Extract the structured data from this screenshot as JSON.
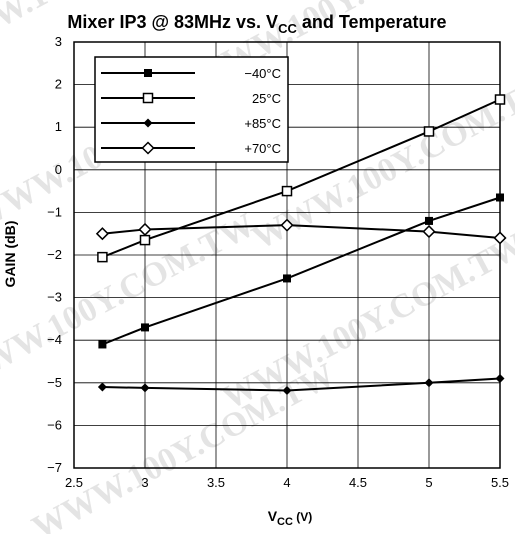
{
  "chart_data": {
    "type": "line",
    "title_main": "Mixer IP3 @ 83MHz vs. V",
    "title_sub": "CC",
    "title_tail": " and Temperature",
    "xlabel_main": "V",
    "xlabel_sub": "CC",
    "xlabel_tail": " (V)",
    "ylabel": "GAIN (dB)",
    "xlim": [
      2.5,
      5.5
    ],
    "ylim": [
      -7,
      3
    ],
    "x_ticks": [
      2.5,
      3,
      3.5,
      4,
      4.5,
      5,
      5.5
    ],
    "x_tick_labels": [
      "2.5",
      "3",
      "3.5",
      "4",
      "4.5",
      "5",
      "5.5"
    ],
    "y_ticks": [
      3,
      2,
      1,
      0,
      -1,
      -2,
      -3,
      -4,
      -5,
      -6,
      -7
    ],
    "y_tick_labels": [
      "3",
      "2",
      "1",
      "0",
      "−1",
      "−2",
      "−3",
      "−4",
      "−5",
      "−6",
      "−7"
    ],
    "grid": true,
    "legend_position": "top-left",
    "watermark": "WWW.100Y.COM.TW",
    "series": [
      {
        "name": "−40°C",
        "marker": "filled-square",
        "x": [
          2.7,
          3,
          4,
          5,
          5.5
        ],
        "y": [
          -4.1,
          -3.7,
          -2.55,
          -1.2,
          -0.65
        ]
      },
      {
        "name": "25°C",
        "marker": "open-square",
        "x": [
          2.7,
          3,
          4,
          5,
          5.5
        ],
        "y": [
          -2.05,
          -1.65,
          -0.5,
          0.9,
          1.65
        ]
      },
      {
        "name": "+85°C",
        "marker": "filled-diamond",
        "x": [
          2.7,
          3,
          4,
          5,
          5.5
        ],
        "y": [
          -5.1,
          -5.12,
          -5.18,
          -5.0,
          -4.9
        ]
      },
      {
        "name": "+70°C",
        "marker": "open-diamond",
        "x": [
          2.7,
          3,
          4,
          5,
          5.5
        ],
        "y": [
          -1.5,
          -1.4,
          -1.3,
          -1.45,
          -1.6
        ]
      }
    ]
  }
}
